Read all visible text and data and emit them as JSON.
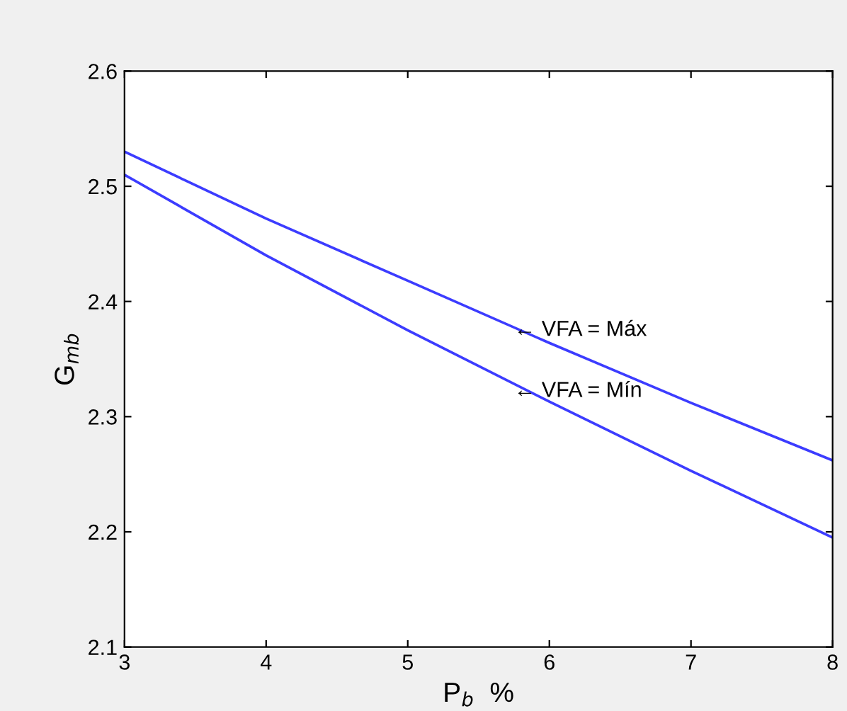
{
  "chart_data": {
    "type": "line",
    "xlabel": "P$_{b}$  %",
    "ylabel": "G$_{mb}$",
    "x": [
      3,
      4,
      5,
      6,
      7,
      8
    ],
    "series": [
      {
        "color": "#3c3cff",
        "values": [
          2.53,
          2.472,
          2.418,
          2.364,
          2.312,
          2.262
        ]
      },
      {
        "color": "#3c3cff",
        "values": [
          2.51,
          2.44,
          2.375,
          2.313,
          2.253,
          2.195
        ]
      }
    ],
    "annotations": [
      {
        "text": "← VFA = Máx",
        "x": 5.75,
        "y": 2.375
      },
      {
        "text": "← VFA = Mín",
        "x": 5.75,
        "y": 2.322
      }
    ],
    "xlim": [
      3,
      8
    ],
    "xticks": [
      3,
      4,
      5,
      6,
      7,
      8
    ],
    "ylim": [
      2.1,
      2.6
    ],
    "yticks": [
      2.1,
      2.2,
      2.3,
      2.4,
      2.5,
      2.6
    ],
    "grid": false,
    "legend": false,
    "marker": "none",
    "line_style": "solid"
  }
}
